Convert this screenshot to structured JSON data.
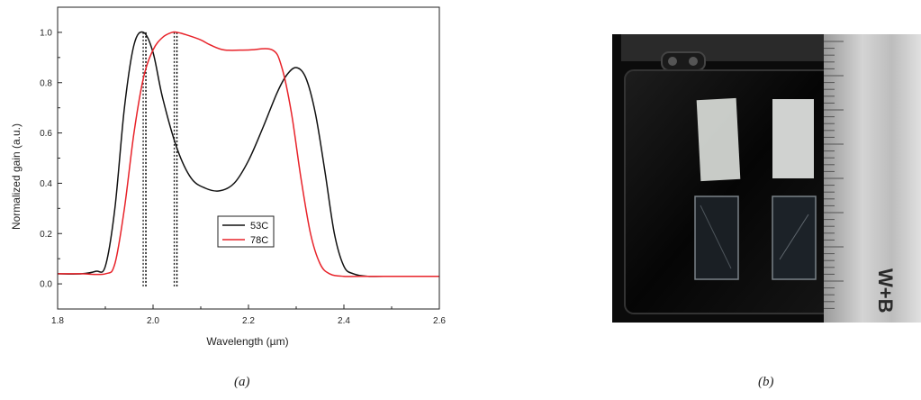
{
  "chart_data": {
    "type": "line",
    "xlabel": "Wavelength (µm)",
    "ylabel": "Normalized gain (a.u.)",
    "xlim": [
      1.8,
      2.6
    ],
    "ylim": [
      -0.1,
      1.1
    ],
    "xticks": [
      1.8,
      2.0,
      2.2,
      2.4,
      2.6
    ],
    "yticks": [
      0.0,
      0.2,
      0.4,
      0.6,
      0.8,
      1.0
    ],
    "grid": false,
    "legend_position": "center",
    "series": [
      {
        "name": "53C",
        "color": "#111111",
        "x": [
          1.8,
          1.85,
          1.88,
          1.9,
          1.92,
          1.94,
          1.96,
          1.98,
          2.0,
          2.02,
          2.05,
          2.08,
          2.11,
          2.14,
          2.17,
          2.2,
          2.23,
          2.26,
          2.28,
          2.3,
          2.32,
          2.34,
          2.36,
          2.38,
          2.4,
          2.42,
          2.45,
          2.5,
          2.55,
          2.6
        ],
        "y": [
          0.04,
          0.04,
          0.05,
          0.07,
          0.3,
          0.7,
          0.95,
          1.0,
          0.92,
          0.74,
          0.54,
          0.42,
          0.38,
          0.37,
          0.4,
          0.49,
          0.62,
          0.76,
          0.83,
          0.86,
          0.82,
          0.68,
          0.45,
          0.2,
          0.07,
          0.04,
          0.03,
          0.03,
          0.03,
          0.03
        ]
      },
      {
        "name": "78C",
        "color": "#e8232a",
        "x": [
          1.8,
          1.85,
          1.9,
          1.92,
          1.94,
          1.96,
          1.98,
          2.0,
          2.02,
          2.04,
          2.05,
          2.07,
          2.1,
          2.12,
          2.15,
          2.2,
          2.25,
          2.27,
          2.29,
          2.31,
          2.33,
          2.35,
          2.37,
          2.4,
          2.45,
          2.5,
          2.55,
          2.6
        ],
        "y": [
          0.04,
          0.04,
          0.04,
          0.08,
          0.3,
          0.6,
          0.82,
          0.93,
          0.98,
          1.0,
          1.0,
          0.99,
          0.97,
          0.95,
          0.93,
          0.93,
          0.93,
          0.86,
          0.68,
          0.42,
          0.2,
          0.08,
          0.04,
          0.03,
          0.03,
          0.03,
          0.03,
          0.03
        ]
      }
    ],
    "markers": [
      1.985,
      2.05
    ]
  },
  "captions": {
    "a": "(a)",
    "b": "(b)"
  },
  "photo": {
    "icon": "sample-box-photo",
    "ruler_text": "W+B"
  }
}
